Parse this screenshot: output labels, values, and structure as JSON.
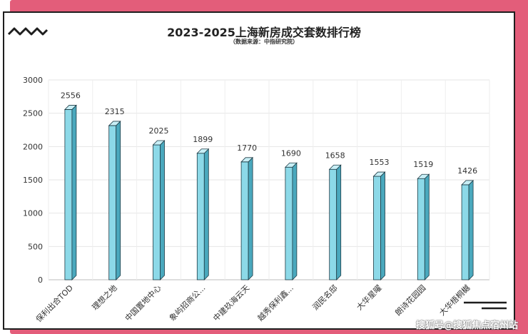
{
  "title": "2023-2025上海新房成交套数排行榜",
  "subtitle": "（数据来源：中指研究院）",
  "watermark": "搜狐号@搜狐焦点宿州站",
  "colors": {
    "bar_front": "#8cd9e8",
    "bar_side": "#4aa8bd",
    "bar_top": "#c8eff6",
    "bar_stroke": "#1d3a44",
    "accent_pink": "#e35d7a",
    "frame": "#1e1e1e"
  },
  "icons": {
    "top_left": "zigzag-icon",
    "bottom_right": "lines-icon"
  },
  "chart_data": {
    "type": "bar",
    "title": "2023-2025上海新房成交套数排行榜",
    "subtitle": "（数据来源：中指研究院）",
    "categories": [
      "保利出合TOD",
      "理想之地",
      "中国置地中心",
      "象屿招商公...",
      "中建玖海云天",
      "越秀保利鑫...",
      "润民名邸",
      "大华星曜",
      "朗诗花园园",
      "大华梧桐樾"
    ],
    "values": [
      2556,
      2315,
      2025,
      1899,
      1770,
      1690,
      1658,
      1553,
      1519,
      1426
    ],
    "ylim": [
      0,
      3000
    ],
    "yticks": [
      0,
      500,
      1000,
      1500,
      2000,
      2500,
      3000
    ],
    "grid": true,
    "legend": "none"
  }
}
